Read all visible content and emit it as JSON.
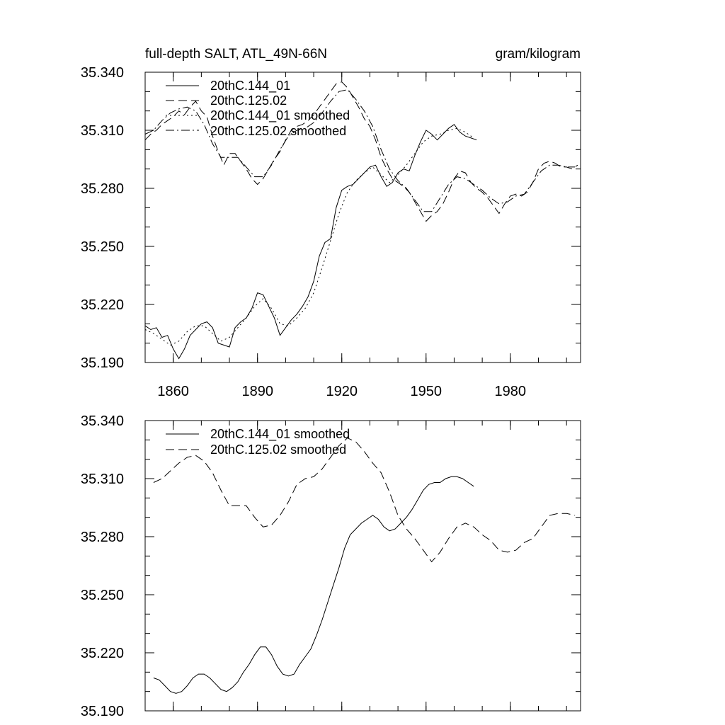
{
  "chart_data": [
    {
      "type": "line",
      "title": "full-depth SALT, ATL_49N-66N",
      "units": "gram/kilogram",
      "xlim": [
        1850,
        2005
      ],
      "ylim": [
        35.19,
        35.34
      ],
      "xticks": [
        "1860",
        "1890",
        "1920",
        "1950",
        "1980"
      ],
      "yticks": [
        "35.340",
        "35.310",
        "35.280",
        "35.250",
        "35.220",
        "35.190"
      ],
      "grid": false,
      "legend_position": "top-left",
      "series": [
        {
          "name": "20thC.144_01",
          "x": [
            1850,
            1852,
            1854,
            1856,
            1858,
            1860,
            1862,
            1864,
            1866,
            1868,
            1870,
            1872,
            1874,
            1876,
            1878,
            1880,
            1882,
            1884,
            1886,
            1888,
            1890,
            1892,
            1894,
            1896,
            1898,
            1900,
            1902,
            1904,
            1906,
            1908,
            1910,
            1912,
            1914,
            1916,
            1918,
            1920,
            1922,
            1924,
            1926,
            1928,
            1930,
            1932,
            1934,
            1936,
            1938,
            1940,
            1942,
            1944,
            1946,
            1948,
            1950,
            1952,
            1954,
            1956,
            1958,
            1960,
            1962,
            1964,
            1966,
            1968
          ],
          "y": [
            35.209,
            35.207,
            35.208,
            35.203,
            35.204,
            35.197,
            35.192,
            35.197,
            35.204,
            35.207,
            35.21,
            35.211,
            35.208,
            35.2,
            35.199,
            35.198,
            35.208,
            35.211,
            35.213,
            35.218,
            35.226,
            35.225,
            35.219,
            35.213,
            35.204,
            35.208,
            35.212,
            35.215,
            35.219,
            35.224,
            35.232,
            35.245,
            35.252,
            35.254,
            35.27,
            35.279,
            35.281,
            35.282,
            35.285,
            35.288,
            35.291,
            35.292,
            35.286,
            35.281,
            35.283,
            35.288,
            35.29,
            35.289,
            35.297,
            35.304,
            35.31,
            35.308,
            35.305,
            35.308,
            35.311,
            35.313,
            35.309,
            35.307,
            35.306,
            35.305
          ]
        },
        {
          "name": "20thC.125.02",
          "x": [
            1850,
            1852,
            1854,
            1856,
            1858,
            1860,
            1862,
            1864,
            1866,
            1868,
            1870,
            1872,
            1874,
            1876,
            1878,
            1880,
            1882,
            1884,
            1886,
            1888,
            1890,
            1892,
            1894,
            1896,
            1898,
            1900,
            1902,
            1904,
            1906,
            1908,
            1910,
            1912,
            1914,
            1916,
            1918,
            1920,
            1922,
            1924,
            1926,
            1928,
            1930,
            1932,
            1934,
            1936,
            1938,
            1940,
            1942,
            1944,
            1946,
            1948,
            1950,
            1952,
            1954,
            1956,
            1958,
            1960,
            1962,
            1964,
            1966,
            1968,
            1970,
            1972,
            1974,
            1976,
            1978,
            1980,
            1982,
            1984,
            1986,
            1988,
            1990,
            1992,
            1994,
            1996,
            1998,
            2000,
            2002,
            2004
          ],
          "y": [
            35.305,
            35.308,
            35.31,
            35.313,
            35.315,
            35.317,
            35.32,
            35.318,
            35.322,
            35.325,
            35.32,
            35.317,
            35.307,
            35.299,
            35.292,
            35.298,
            35.298,
            35.294,
            35.29,
            35.285,
            35.282,
            35.285,
            35.29,
            35.295,
            35.299,
            35.305,
            35.31,
            35.312,
            35.313,
            35.315,
            35.318,
            35.322,
            35.326,
            35.33,
            35.334,
            35.335,
            35.332,
            35.327,
            35.322,
            35.316,
            35.312,
            35.305,
            35.296,
            35.29,
            35.285,
            35.283,
            35.281,
            35.278,
            35.273,
            35.268,
            35.263,
            35.266,
            35.268,
            35.272,
            35.278,
            35.285,
            35.289,
            35.288,
            35.283,
            35.28,
            35.278,
            35.275,
            35.271,
            35.267,
            35.272,
            35.276,
            35.277,
            35.276,
            35.278,
            35.283,
            35.29,
            35.293,
            35.294,
            35.293,
            35.291,
            35.291,
            35.29,
            35.292
          ]
        },
        {
          "name": "20thC.144_01 smoothed",
          "x": [
            1850,
            1853,
            1856,
            1859,
            1862,
            1865,
            1868,
            1871,
            1874,
            1877,
            1880,
            1883,
            1886,
            1889,
            1892,
            1895,
            1898,
            1901,
            1904,
            1907,
            1910,
            1913,
            1916,
            1919,
            1922,
            1925,
            1928,
            1931,
            1934,
            1937,
            1940,
            1943,
            1946,
            1949,
            1952,
            1955,
            1958,
            1961,
            1964,
            1967
          ],
          "y": [
            35.207,
            35.205,
            35.202,
            35.199,
            35.201,
            35.206,
            35.209,
            35.209,
            35.205,
            35.201,
            35.203,
            35.208,
            35.213,
            35.219,
            35.223,
            35.218,
            35.21,
            35.209,
            35.213,
            35.218,
            35.226,
            35.239,
            35.253,
            35.267,
            35.278,
            35.284,
            35.288,
            35.291,
            35.287,
            35.283,
            35.287,
            35.292,
            35.298,
            35.304,
            35.307,
            35.308,
            35.31,
            35.311,
            35.309,
            35.306
          ]
        },
        {
          "name": "20thC.125.02 smoothed",
          "x": [
            1850,
            1853,
            1856,
            1859,
            1862,
            1865,
            1868,
            1871,
            1874,
            1877,
            1880,
            1883,
            1886,
            1889,
            1892,
            1895,
            1898,
            1901,
            1904,
            1907,
            1910,
            1913,
            1916,
            1919,
            1922,
            1925,
            1928,
            1931,
            1934,
            1937,
            1940,
            1943,
            1946,
            1949,
            1952,
            1955,
            1958,
            1961,
            1964,
            1967,
            1970,
            1973,
            1976,
            1979,
            1982,
            1985,
            1988,
            1991,
            1994,
            1997,
            2000,
            2003
          ],
          "y": [
            35.308,
            35.31,
            35.315,
            35.319,
            35.321,
            35.322,
            35.32,
            35.313,
            35.303,
            35.296,
            35.296,
            35.296,
            35.291,
            35.286,
            35.286,
            35.292,
            35.3,
            35.307,
            35.31,
            35.311,
            35.314,
            35.319,
            35.325,
            35.33,
            35.331,
            35.326,
            35.32,
            35.312,
            35.3,
            35.29,
            35.284,
            35.28,
            35.274,
            35.268,
            35.268,
            35.275,
            35.282,
            35.286,
            35.285,
            35.282,
            35.279,
            35.275,
            35.272,
            35.273,
            35.276,
            35.277,
            35.283,
            35.289,
            35.292,
            35.292,
            35.291,
            35.291
          ]
        }
      ]
    },
    {
      "type": "line",
      "title": "",
      "xlim": [
        1850,
        2005
      ],
      "ylim": [
        35.19,
        35.34
      ],
      "xticks": [],
      "yticks": [
        "35.340",
        "35.310",
        "35.280",
        "35.250",
        "35.220",
        "35.190"
      ],
      "grid": false,
      "legend_position": "top-left",
      "series": [
        {
          "name": "20thC.144_01 smoothed",
          "x": [
            1853,
            1855,
            1857,
            1859,
            1861,
            1863,
            1865,
            1867,
            1869,
            1871,
            1873,
            1875,
            1877,
            1879,
            1881,
            1883,
            1885,
            1887,
            1889,
            1891,
            1893,
            1895,
            1897,
            1899,
            1901,
            1903,
            1905,
            1907,
            1909,
            1911,
            1913,
            1915,
            1917,
            1919,
            1921,
            1923,
            1925,
            1927,
            1929,
            1931,
            1933,
            1935,
            1937,
            1939,
            1941,
            1943,
            1945,
            1947,
            1949,
            1951,
            1953,
            1955,
            1957,
            1959,
            1961,
            1963,
            1965,
            1967
          ],
          "y": [
            35.207,
            35.206,
            35.203,
            35.2,
            35.199,
            35.2,
            35.203,
            35.207,
            35.209,
            35.209,
            35.207,
            35.204,
            35.201,
            35.2,
            35.202,
            35.205,
            35.21,
            35.214,
            35.219,
            35.223,
            35.223,
            35.219,
            35.213,
            35.209,
            35.208,
            35.209,
            35.214,
            35.218,
            35.222,
            35.229,
            35.237,
            35.246,
            35.255,
            35.264,
            35.274,
            35.281,
            35.284,
            35.287,
            35.289,
            35.291,
            35.289,
            35.285,
            35.283,
            35.284,
            35.287,
            35.29,
            35.294,
            35.299,
            35.304,
            35.307,
            35.308,
            35.308,
            35.31,
            35.311,
            35.311,
            35.31,
            35.308,
            35.306
          ]
        },
        {
          "name": "20thC.125.02 smoothed",
          "x": [
            1853,
            1856,
            1859,
            1862,
            1865,
            1868,
            1871,
            1874,
            1877,
            1880,
            1883,
            1886,
            1889,
            1892,
            1895,
            1898,
            1901,
            1904,
            1907,
            1910,
            1913,
            1916,
            1919,
            1922,
            1925,
            1928,
            1931,
            1934,
            1937,
            1940,
            1943,
            1946,
            1949,
            1952,
            1955,
            1958,
            1961,
            1964,
            1967,
            1970,
            1973,
            1976,
            1979,
            1982,
            1985,
            1988,
            1991,
            1994,
            1997,
            2000,
            2003
          ],
          "y": [
            35.308,
            35.31,
            35.314,
            35.318,
            35.321,
            35.322,
            35.319,
            35.313,
            35.304,
            35.296,
            35.296,
            35.296,
            35.29,
            35.285,
            35.286,
            35.291,
            35.298,
            35.307,
            35.31,
            35.311,
            35.315,
            35.321,
            35.327,
            35.331,
            35.329,
            35.324,
            35.318,
            35.313,
            35.303,
            35.291,
            35.284,
            35.279,
            35.273,
            35.267,
            35.272,
            35.279,
            35.285,
            35.287,
            35.285,
            35.281,
            35.278,
            35.273,
            35.272,
            35.273,
            35.277,
            35.279,
            35.285,
            35.291,
            35.292,
            35.292,
            35.291
          ]
        }
      ]
    }
  ]
}
